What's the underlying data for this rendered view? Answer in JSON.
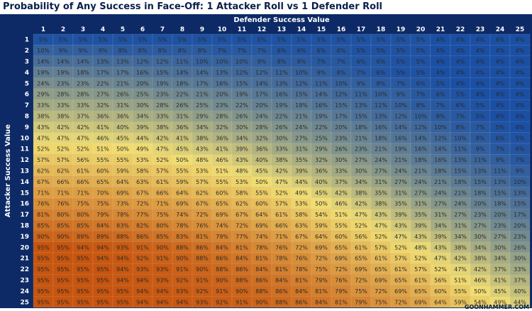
{
  "chart_data": {
    "type": "heatmap",
    "title": "Probability of Any Success in Face-Off: 1 Attacker Roll vs 1 Defender Roll",
    "xlabel": "Defender Success Value",
    "ylabel": "Attacker Success Value",
    "x_categories": [
      "1",
      "2",
      "3",
      "4",
      "5",
      "6",
      "7",
      "8",
      "9",
      "10",
      "11",
      "12",
      "13",
      "14",
      "15",
      "16",
      "17",
      "18",
      "19",
      "20",
      "21",
      "22",
      "23",
      "24",
      "25"
    ],
    "y_categories": [
      "1",
      "2",
      "3",
      "4",
      "5",
      "6",
      "7",
      "8",
      "9",
      "10",
      "11",
      "12",
      "13",
      "14",
      "15",
      "16",
      "17",
      "18",
      "19",
      "20",
      "21",
      "22",
      "23",
      "24",
      "25"
    ],
    "value_suffix": "%",
    "colors": {
      "low": "#1a4fa3",
      "mid": "#f0dd72",
      "high": "#c7550f",
      "background": "#0d2a66",
      "header_text": "#ffffff"
    },
    "values": [
      [
        5,
        5,
        5,
        5,
        5,
        5,
        5,
        5,
        5,
        5,
        5,
        5,
        5,
        5,
        5,
        5,
        5,
        5,
        5,
        5,
        4,
        4,
        4,
        4,
        4
      ],
      [
        10,
        9,
        9,
        9,
        8,
        8,
        8,
        8,
        8,
        7,
        7,
        7,
        6,
        6,
        6,
        6,
        5,
        5,
        5,
        5,
        4,
        4,
        4,
        4,
        4
      ],
      [
        14,
        14,
        14,
        13,
        13,
        12,
        12,
        11,
        10,
        10,
        10,
        9,
        8,
        8,
        7,
        7,
        6,
        6,
        5,
        5,
        4,
        4,
        4,
        4,
        4
      ],
      [
        19,
        19,
        18,
        17,
        17,
        16,
        15,
        14,
        14,
        13,
        12,
        12,
        11,
        10,
        9,
        8,
        7,
        6,
        5,
        5,
        4,
        4,
        4,
        4,
        4
      ],
      [
        24,
        23,
        23,
        22,
        21,
        20,
        19,
        18,
        17,
        16,
        15,
        14,
        13,
        12,
        11,
        10,
        9,
        8,
        7,
        6,
        5,
        4,
        4,
        4,
        4
      ],
      [
        29,
        28,
        28,
        27,
        26,
        25,
        23,
        22,
        21,
        20,
        19,
        17,
        16,
        15,
        14,
        12,
        11,
        10,
        9,
        7,
        6,
        5,
        4,
        4,
        4
      ],
      [
        33,
        33,
        33,
        32,
        31,
        30,
        28,
        26,
        25,
        23,
        22,
        20,
        19,
        18,
        16,
        15,
        13,
        11,
        10,
        8,
        7,
        6,
        5,
        4,
        4
      ],
      [
        38,
        38,
        37,
        36,
        36,
        34,
        33,
        31,
        29,
        28,
        26,
        24,
        22,
        21,
        19,
        17,
        15,
        13,
        12,
        10,
        8,
        7,
        5,
        4,
        4
      ],
      [
        43,
        42,
        42,
        41,
        40,
        39,
        38,
        36,
        34,
        32,
        30,
        28,
        26,
        24,
        22,
        20,
        18,
        16,
        14,
        12,
        10,
        8,
        7,
        5,
        4
      ],
      [
        47,
        47,
        47,
        46,
        45,
        44,
        42,
        41,
        38,
        36,
        34,
        32,
        30,
        27,
        25,
        23,
        21,
        18,
        16,
        14,
        12,
        10,
        8,
        6,
        5
      ],
      [
        52,
        52,
        52,
        51,
        50,
        49,
        47,
        45,
        43,
        41,
        39,
        36,
        33,
        31,
        29,
        26,
        23,
        21,
        19,
        16,
        14,
        11,
        9,
        7,
        6
      ],
      [
        57,
        57,
        56,
        55,
        55,
        53,
        52,
        50,
        48,
        46,
        43,
        40,
        38,
        35,
        32,
        30,
        27,
        24,
        21,
        18,
        16,
        13,
        11,
        9,
        7
      ],
      [
        62,
        62,
        61,
        60,
        59,
        58,
        57,
        55,
        53,
        51,
        48,
        45,
        42,
        39,
        36,
        33,
        30,
        27,
        24,
        21,
        18,
        15,
        13,
        11,
        9
      ],
      [
        67,
        66,
        66,
        65,
        64,
        63,
        61,
        59,
        57,
        55,
        53,
        50,
        47,
        44,
        40,
        37,
        34,
        31,
        27,
        24,
        21,
        18,
        15,
        13,
        10
      ],
      [
        71,
        71,
        71,
        70,
        69,
        67,
        66,
        64,
        62,
        60,
        58,
        55,
        52,
        49,
        45,
        42,
        38,
        35,
        31,
        27,
        24,
        21,
        18,
        15,
        13
      ],
      [
        76,
        76,
        75,
        75,
        73,
        72,
        71,
        69,
        67,
        65,
        62,
        60,
        57,
        53,
        50,
        46,
        42,
        38,
        35,
        31,
        27,
        24,
        20,
        18,
        15
      ],
      [
        81,
        80,
        80,
        79,
        78,
        77,
        75,
        74,
        72,
        69,
        67,
        64,
        61,
        58,
        54,
        51,
        47,
        43,
        39,
        35,
        31,
        27,
        23,
        20,
        17
      ],
      [
        85,
        85,
        85,
        84,
        83,
        82,
        80,
        78,
        76,
        74,
        72,
        69,
        66,
        63,
        59,
        55,
        52,
        47,
        43,
        39,
        34,
        31,
        27,
        23,
        20
      ],
      [
        90,
        90,
        89,
        89,
        88,
        86,
        85,
        83,
        81,
        79,
        77,
        74,
        71,
        67,
        64,
        60,
        56,
        52,
        47,
        43,
        39,
        34,
        30,
        27,
        23
      ],
      [
        95,
        95,
        94,
        94,
        93,
        91,
        90,
        88,
        86,
        84,
        81,
        78,
        76,
        72,
        69,
        65,
        61,
        57,
        52,
        48,
        43,
        38,
        34,
        30,
        26
      ],
      [
        95,
        95,
        95,
        94,
        94,
        92,
        91,
        90,
        88,
        86,
        84,
        81,
        78,
        76,
        72,
        69,
        65,
        61,
        57,
        52,
        47,
        42,
        38,
        34,
        30
      ],
      [
        95,
        95,
        95,
        95,
        94,
        93,
        93,
        91,
        90,
        88,
        86,
        84,
        81,
        78,
        75,
        72,
        69,
        65,
        61,
        57,
        52,
        47,
        42,
        37,
        33
      ],
      [
        95,
        95,
        95,
        95,
        94,
        94,
        93,
        92,
        91,
        90,
        88,
        86,
        84,
        81,
        79,
        76,
        72,
        69,
        65,
        61,
        56,
        51,
        46,
        41,
        37
      ],
      [
        95,
        95,
        95,
        95,
        95,
        94,
        94,
        93,
        92,
        91,
        90,
        88,
        86,
        84,
        81,
        79,
        75,
        72,
        69,
        65,
        60,
        55,
        50,
        45,
        40
      ],
      [
        95,
        95,
        95,
        95,
        95,
        94,
        94,
        94,
        93,
        92,
        91,
        90,
        88,
        86,
        84,
        81,
        79,
        75,
        72,
        69,
        64,
        59,
        54,
        49,
        44
      ]
    ]
  },
  "footer": {
    "credit": "GOONHAMMER.COM"
  }
}
